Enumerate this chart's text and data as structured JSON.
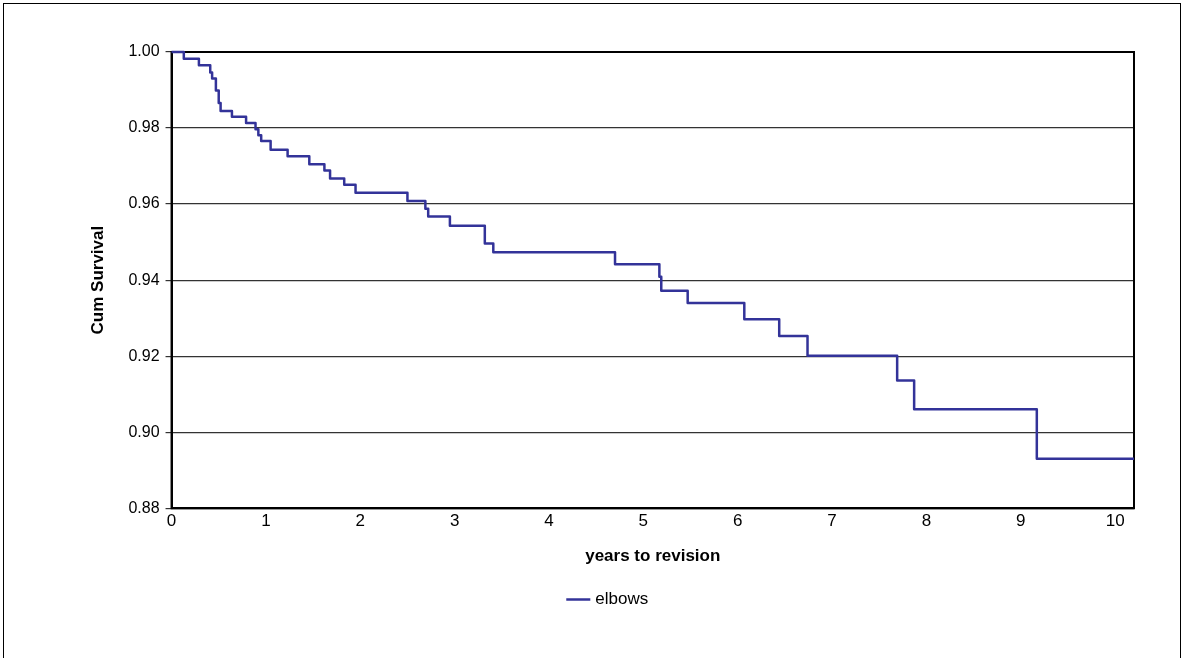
{
  "chart_data": {
    "type": "step",
    "xlabel": "years to revision",
    "ylabel": "Cum Survival",
    "series": [
      {
        "name": "elbows",
        "color": "#333399",
        "x": [
          0,
          0.13,
          0.29,
          0.41,
          0.43,
          0.47,
          0.5,
          0.52,
          0.64,
          0.79,
          0.89,
          0.92,
          0.95,
          1.05,
          1.23,
          1.46,
          1.62,
          1.68,
          1.83,
          1.95,
          2.5,
          2.69,
          2.72,
          2.95,
          3.32,
          3.41,
          4.7,
          5.17,
          5.19,
          5.47,
          6.07,
          6.44,
          6.74,
          7.69,
          7.87,
          9.17,
          10.2
        ],
        "values": [
          1.0,
          0.9982,
          0.9965,
          0.9946,
          0.993,
          0.9899,
          0.9866,
          0.9845,
          0.983,
          0.9813,
          0.9797,
          0.9781,
          0.9766,
          0.9743,
          0.9726,
          0.9705,
          0.9688,
          0.9667,
          0.9651,
          0.963,
          0.9608,
          0.9588,
          0.9567,
          0.9543,
          0.9496,
          0.9473,
          0.9442,
          0.9409,
          0.9372,
          0.934,
          0.9297,
          0.9253,
          0.9201,
          0.9136,
          0.906,
          0.893,
          0.893
        ]
      }
    ],
    "xlim": [
      0,
      10.2
    ],
    "xticks": [
      0,
      1,
      2,
      3,
      4,
      5,
      6,
      7,
      8,
      9,
      10
    ],
    "ylim": [
      0.88,
      1.0
    ],
    "yticks": [
      0.88,
      {
        "value": 0.9,
        "label": "0.90"
      },
      0.92,
      0.94,
      0.96,
      0.98,
      {
        "value": 1.0,
        "label": "1.00"
      }
    ],
    "grid": "y",
    "legend": "bottom",
    "marker": "none",
    "line_style": "solid"
  }
}
